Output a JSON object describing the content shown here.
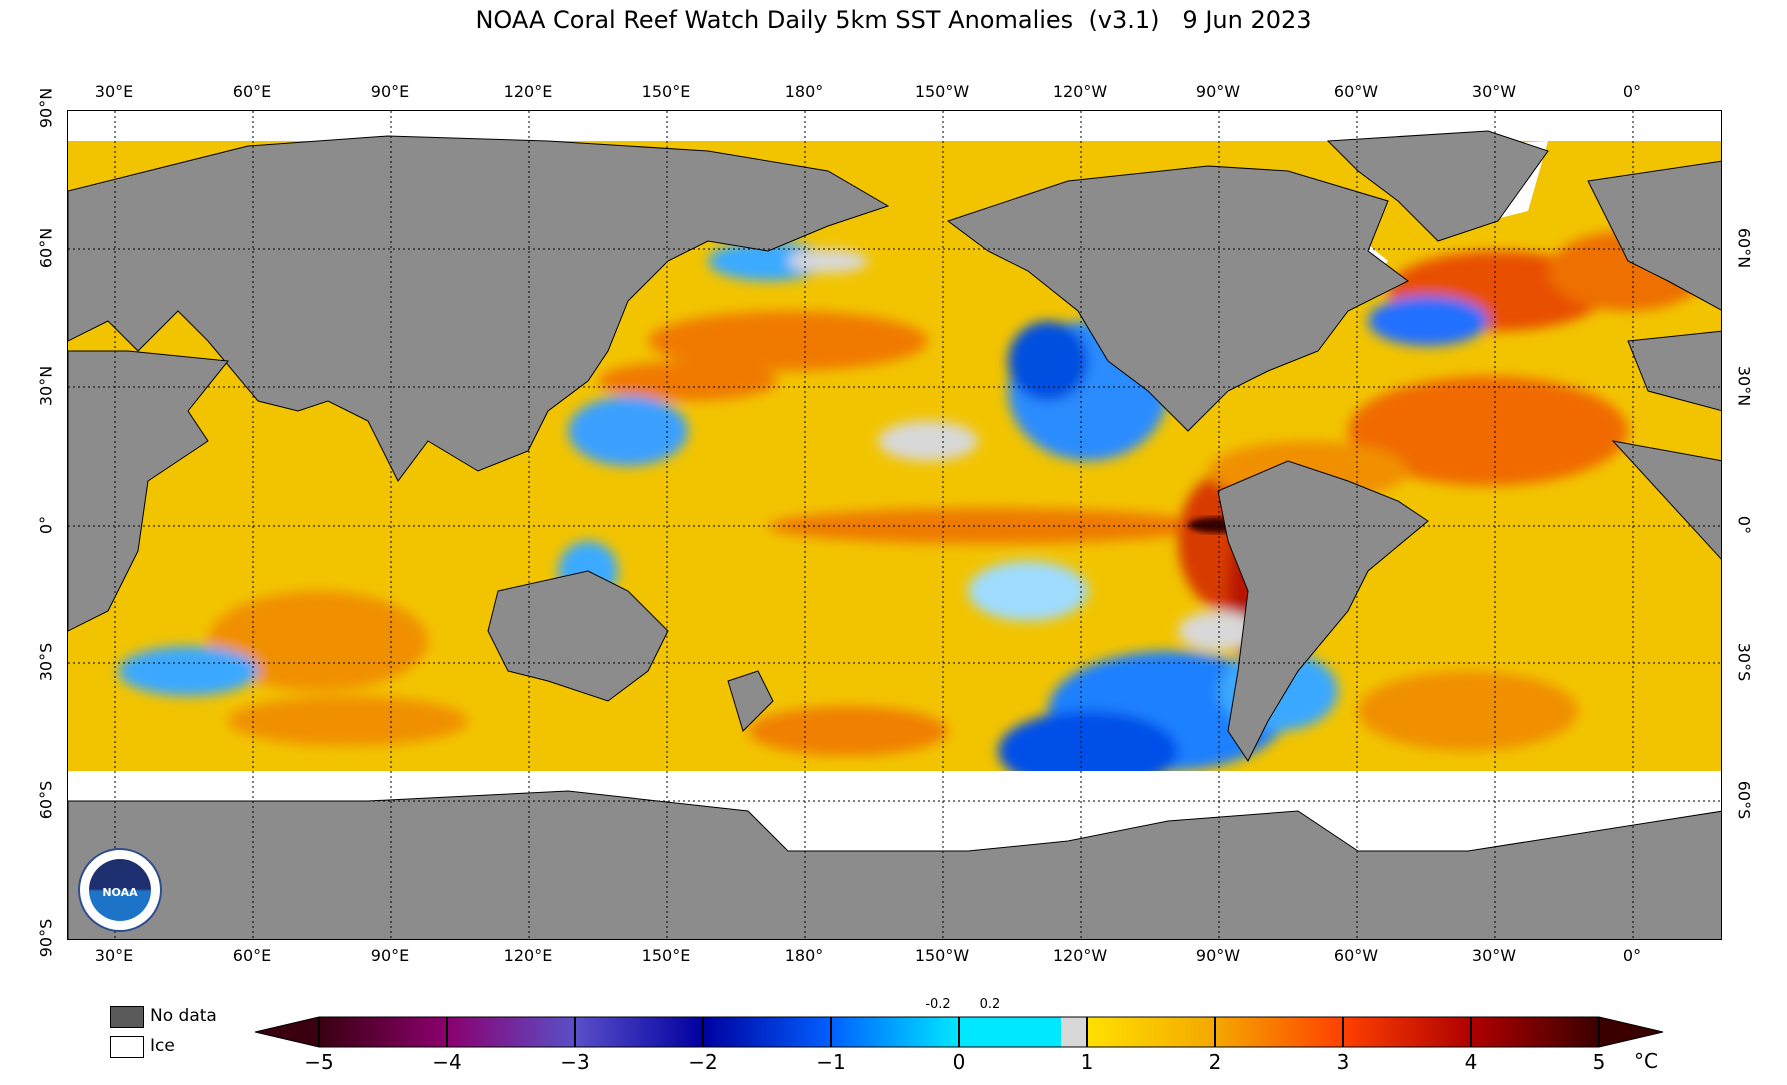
{
  "title": "NOAA Coral Reef Watch Daily 5km SST Anomalies  (v3.1)   9 Jun 2023",
  "longitude_labels": [
    "30°E",
    "60°E",
    "90°E",
    "120°E",
    "150°E",
    "180°",
    "150°W",
    "120°W",
    "90°W",
    "60°W",
    "30°W",
    "0°"
  ],
  "latitude_labels": [
    "90°N",
    "60°N",
    "30°N",
    "0°",
    "30°S",
    "60°S",
    "90°S"
  ],
  "legend": {
    "no_data": "No data",
    "ice": "Ice"
  },
  "colorbar": {
    "ticks": [
      "−5",
      "−4",
      "−3",
      "−2",
      "−1",
      "0",
      "1",
      "2",
      "3",
      "4",
      "5"
    ],
    "small_ticks": [
      "-0.2",
      "0.2"
    ],
    "unit": "°C",
    "colors": {
      "neg5": "#3a0010",
      "neg4": "#8b006e",
      "neg3": "#5a4fc9",
      "neg2": "#0000a0",
      "neg1": "#0060ff",
      "zero_neg": "#00e8ff",
      "neutral": "#d8d8d8",
      "pos1": "#ffe000",
      "pos2": "#f4a800",
      "pos3": "#ff4000",
      "pos4": "#b00000",
      "pos5": "#3a0000"
    }
  },
  "map_colors": {
    "land": "#8c8c8c",
    "no_data": "#595959",
    "ice": "#ffffff",
    "ocean_base": "#f2c400"
  },
  "logo_text": "NOAA"
}
